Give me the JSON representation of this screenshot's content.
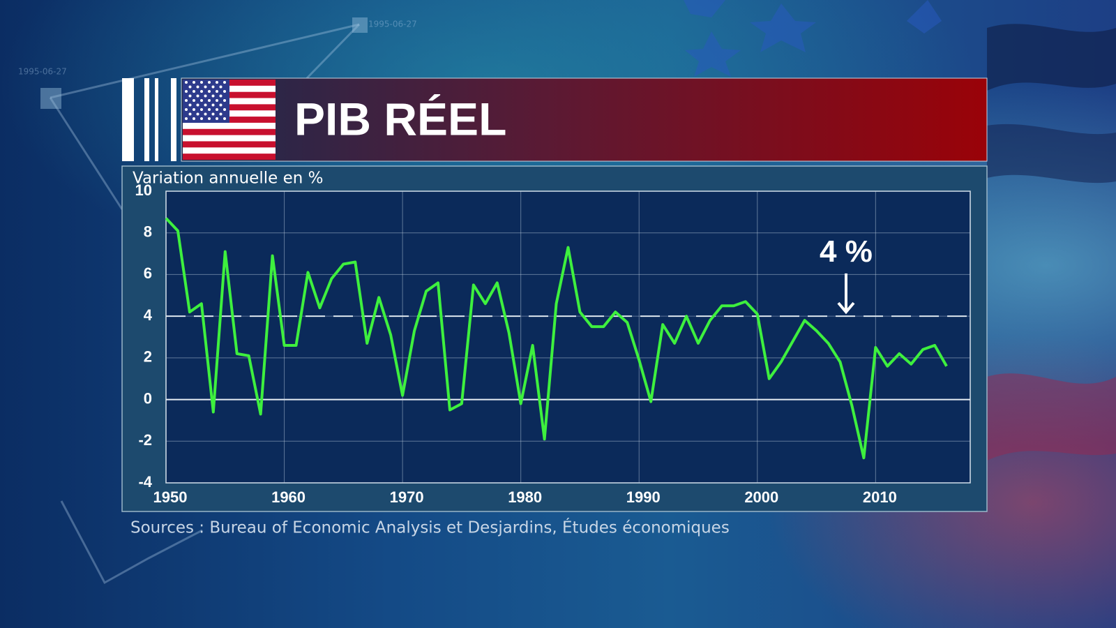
{
  "header": {
    "title": "PIB RÉEL"
  },
  "background_labels": [
    "1995-06-27",
    "1995-06-27"
  ],
  "source": "Sources : Bureau of Economic Analysis et Desjardins, Études économiques",
  "chart_data": {
    "type": "line",
    "y_label": "Variation annuelle en %",
    "x": [
      1950,
      1951,
      1952,
      1953,
      1954,
      1955,
      1956,
      1957,
      1958,
      1959,
      1960,
      1961,
      1962,
      1963,
      1964,
      1965,
      1966,
      1967,
      1968,
      1969,
      1970,
      1971,
      1972,
      1973,
      1974,
      1975,
      1976,
      1977,
      1978,
      1979,
      1980,
      1981,
      1982,
      1983,
      1984,
      1985,
      1986,
      1987,
      1988,
      1989,
      1990,
      1991,
      1992,
      1993,
      1994,
      1995,
      1996,
      1997,
      1998,
      1999,
      2000,
      2001,
      2002,
      2003,
      2004,
      2005,
      2006,
      2007,
      2008,
      2009,
      2010,
      2011,
      2012,
      2013,
      2014,
      2015,
      2016
    ],
    "values": [
      8.7,
      8.1,
      4.2,
      4.6,
      -0.6,
      7.1,
      2.2,
      2.1,
      -0.7,
      6.9,
      2.6,
      2.6,
      6.1,
      4.4,
      5.8,
      6.5,
      6.6,
      2.7,
      4.9,
      3.1,
      0.2,
      3.3,
      5.2,
      5.6,
      -0.5,
      -0.2,
      5.5,
      4.6,
      5.6,
      3.2,
      -0.2,
      2.6,
      -1.9,
      4.6,
      7.3,
      4.2,
      3.5,
      3.5,
      4.2,
      3.7,
      1.9,
      -0.1,
      3.6,
      2.7,
      4.0,
      2.7,
      3.8,
      4.5,
      4.5,
      4.7,
      4.1,
      1.0,
      1.8,
      2.8,
      3.8,
      3.3,
      2.7,
      1.8,
      -0.3,
      -2.8,
      2.5,
      1.6,
      2.2,
      1.7,
      2.4,
      2.6,
      1.6
    ],
    "color": "#3ef03e",
    "xlim": [
      1950,
      2018
    ],
    "xticks": [
      1950,
      1960,
      1970,
      1980,
      1990,
      2000,
      2010
    ],
    "ylim": [
      -4,
      10
    ],
    "yticks": [
      10,
      8,
      6,
      4,
      2,
      0,
      -2,
      -4
    ],
    "grid": true,
    "reference_line": 4,
    "annotation": "4 %"
  }
}
